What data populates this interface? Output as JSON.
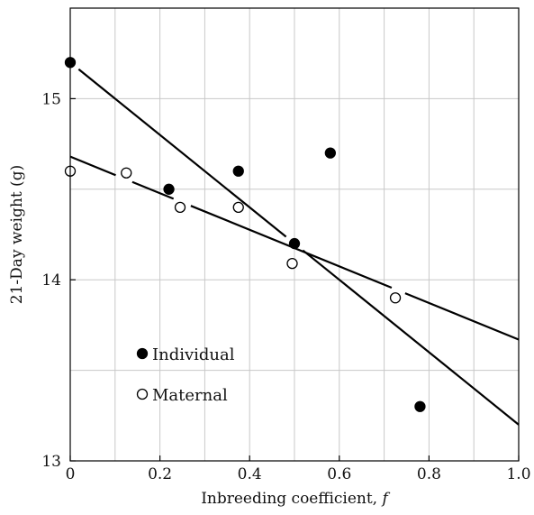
{
  "chart_data": {
    "type": "scatter",
    "xlabel": "Inbreeding coefficient, f",
    "ylabel": "21-Day weight (g)",
    "xlim": [
      0,
      1.0
    ],
    "ylim": [
      13,
      15.5
    ],
    "x_ticks": [
      0,
      0.2,
      0.4,
      0.6,
      0.8,
      1.0
    ],
    "x_tick_labels": [
      "0",
      "0.2",
      "0.4",
      "0.6",
      "0.8",
      "1.0"
    ],
    "y_ticks": [
      13,
      14,
      15
    ],
    "y_tick_labels": [
      "13",
      "14",
      "15"
    ],
    "grid": true,
    "legend_position": "bottom-left",
    "series": [
      {
        "name": "Individual",
        "marker": "filled-circle",
        "color": "#000000",
        "x": [
          0.0,
          0.22,
          0.375,
          0.5,
          0.58,
          0.78
        ],
        "y": [
          15.2,
          14.5,
          14.6,
          14.2,
          14.7,
          13.3
        ],
        "fit_line": {
          "x": [
            0.0,
            1.0
          ],
          "y": [
            15.2,
            13.2
          ]
        }
      },
      {
        "name": "Maternal",
        "marker": "open-circle",
        "color": "#000000",
        "x": [
          0.0,
          0.125,
          0.245,
          0.375,
          0.495,
          0.725
        ],
        "y": [
          14.6,
          14.59,
          14.4,
          14.4,
          14.09,
          13.9
        ],
        "fit_line": {
          "x": [
            0.0,
            1.0
          ],
          "y": [
            14.68,
            13.67
          ]
        }
      }
    ]
  }
}
